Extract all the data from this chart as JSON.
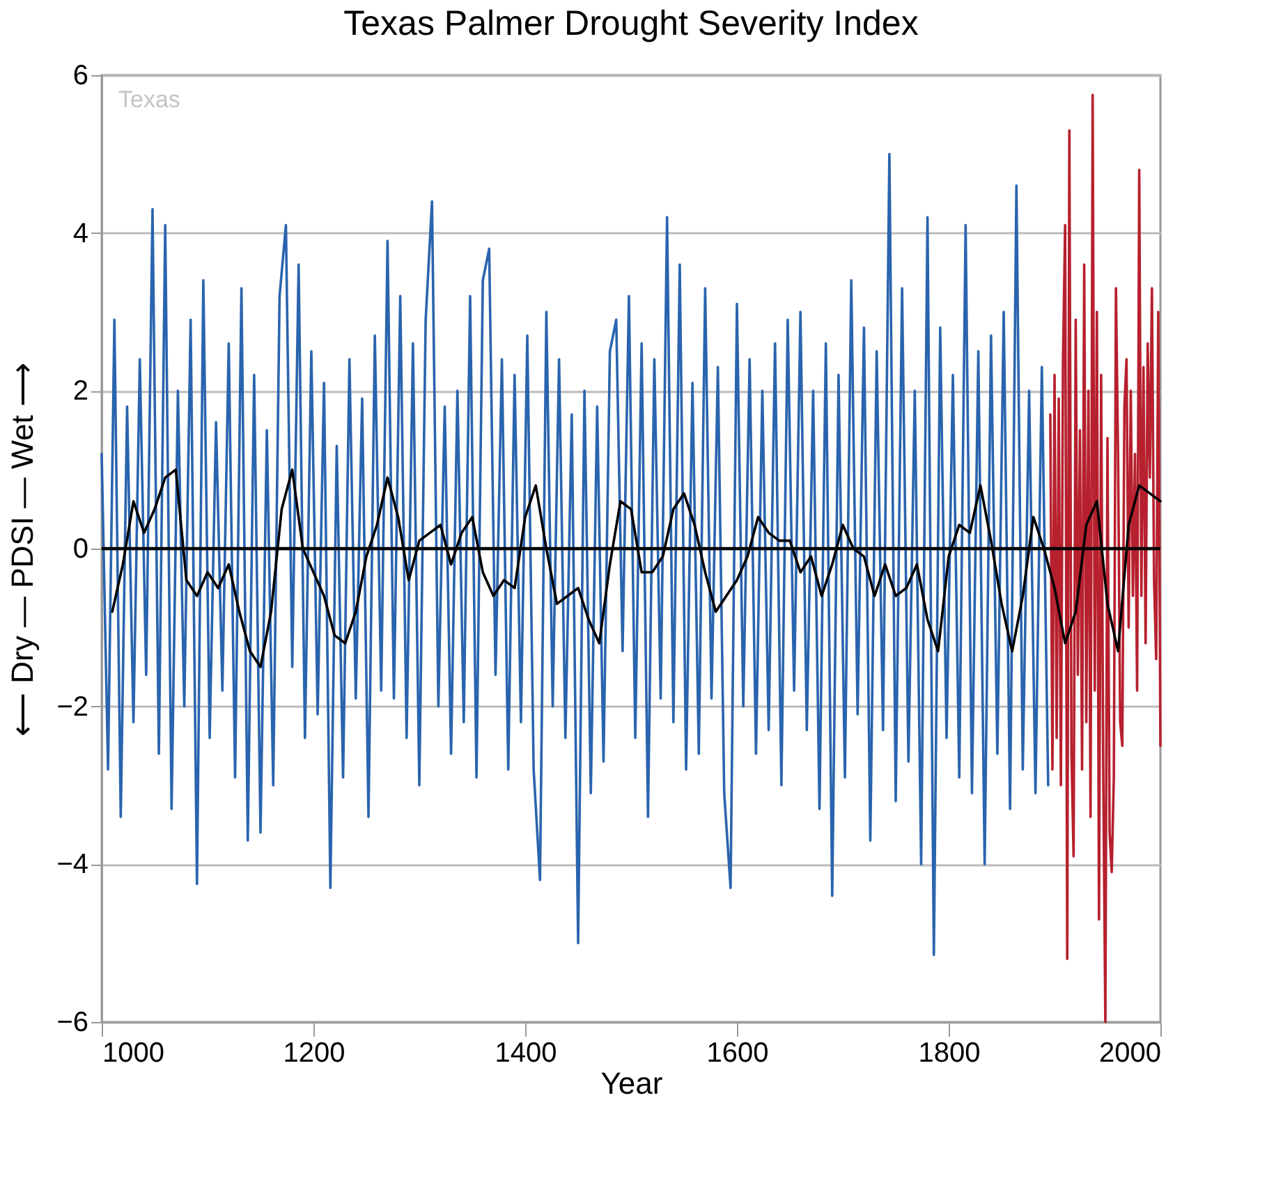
{
  "chart_data": {
    "type": "line",
    "title": "Texas Palmer Drought Severity Index",
    "xlabel": "Year",
    "ylabel": "⟵ Dry —   PDSI   — Wet ⟶",
    "annotations": [
      "Texas"
    ],
    "xlim": [
      1000,
      2000
    ],
    "xticks": [
      1000,
      1200,
      1400,
      1600,
      1800,
      2000
    ],
    "ylim": [
      -6,
      6
    ],
    "yticks": [
      -6,
      -4,
      -2,
      0,
      2,
      4,
      6
    ],
    "grid": "y",
    "line_style": "solid",
    "marker": "none",
    "ref_lines": [
      {
        "axis": "y",
        "value": 0,
        "color": "#000000"
      }
    ],
    "series": [
      {
        "color": "#2a64ae",
        "x": [
          1000,
          1006,
          1012,
          1018,
          1024,
          1030,
          1036,
          1042,
          1048,
          1054,
          1060,
          1066,
          1072,
          1078,
          1084,
          1090,
          1096,
          1102,
          1108,
          1114,
          1120,
          1126,
          1132,
          1138,
          1144,
          1150,
          1156,
          1162,
          1168,
          1174,
          1180,
          1186,
          1192,
          1198,
          1204,
          1210,
          1216,
          1222,
          1228,
          1234,
          1240,
          1246,
          1252,
          1258,
          1264,
          1270,
          1276,
          1282,
          1288,
          1294,
          1300,
          1306,
          1312,
          1318,
          1324,
          1330,
          1336,
          1342,
          1348,
          1354,
          1360,
          1366,
          1372,
          1378,
          1384,
          1390,
          1396,
          1402,
          1408,
          1414,
          1420,
          1426,
          1432,
          1438,
          1444,
          1450,
          1456,
          1462,
          1468,
          1474,
          1480,
          1486,
          1492,
          1498,
          1504,
          1510,
          1516,
          1522,
          1528,
          1534,
          1540,
          1546,
          1552,
          1558,
          1564,
          1570,
          1576,
          1582,
          1588,
          1594,
          1600,
          1606,
          1612,
          1618,
          1624,
          1630,
          1636,
          1642,
          1648,
          1654,
          1660,
          1666,
          1672,
          1678,
          1684,
          1690,
          1696,
          1702,
          1708,
          1714,
          1720,
          1726,
          1732,
          1738,
          1744,
          1750,
          1756,
          1762,
          1768,
          1774,
          1780,
          1786,
          1792,
          1798,
          1804,
          1810,
          1816,
          1822,
          1828,
          1834,
          1840,
          1846,
          1852,
          1858,
          1864,
          1870,
          1876,
          1882,
          1888,
          1894
        ],
        "values": [
          1.2,
          -2.8,
          2.9,
          -3.4,
          1.8,
          -2.2,
          2.4,
          -1.6,
          4.3,
          -2.6,
          4.1,
          -3.3,
          2.0,
          -2.0,
          2.9,
          -4.25,
          3.4,
          -2.4,
          1.6,
          -1.8,
          2.6,
          -2.9,
          3.3,
          -3.7,
          2.2,
          -3.6,
          1.5,
          -3.0,
          3.2,
          4.1,
          -1.5,
          3.6,
          -2.4,
          2.5,
          -2.1,
          2.1,
          -4.3,
          1.3,
          -2.9,
          2.4,
          -1.9,
          1.9,
          -3.4,
          2.7,
          -1.8,
          3.9,
          -1.9,
          3.2,
          -2.4,
          2.6,
          -3.0,
          2.9,
          4.4,
          -2.0,
          1.8,
          -2.6,
          2.0,
          -2.2,
          3.2,
          -2.9,
          3.4,
          3.8,
          -1.6,
          2.4,
          -2.8,
          2.2,
          -2.2,
          2.7,
          -2.8,
          -4.2,
          3.0,
          -2.0,
          2.4,
          -2.4,
          1.7,
          -5.0,
          2.0,
          -3.1,
          1.8,
          -2.7,
          2.5,
          2.9,
          -1.3,
          3.2,
          -2.4,
          2.6,
          -3.4,
          2.4,
          -1.9,
          4.2,
          -2.2,
          3.6,
          -2.8,
          2.1,
          -2.6,
          3.3,
          -1.9,
          2.3,
          -3.1,
          -4.3,
          3.1,
          -2.0,
          2.4,
          -2.6,
          2.0,
          -2.3,
          2.6,
          -3.0,
          2.9,
          -1.8,
          3.0,
          -2.3,
          2.0,
          -3.3,
          2.6,
          -4.4,
          2.2,
          -2.9,
          3.4,
          -2.1,
          2.8,
          -3.7,
          2.5,
          -2.3,
          5.0,
          -3.2,
          3.3,
          -2.7,
          2.0,
          -4.0,
          4.2,
          -5.15,
          2.8,
          -2.4,
          2.2,
          -2.9,
          4.1,
          -3.1,
          2.5,
          -4.0,
          2.7,
          -2.6,
          3.0,
          -3.3,
          4.6,
          -2.8,
          2.0,
          -3.1,
          2.3,
          -3.0
        ]
      },
      {
        "color": "#b7202e",
        "x": [
          1896,
          1898,
          1900,
          1902,
          1904,
          1906,
          1908,
          1910,
          1912,
          1914,
          1916,
          1918,
          1920,
          1922,
          1924,
          1926,
          1928,
          1930,
          1932,
          1934,
          1936,
          1938,
          1940,
          1942,
          1944,
          1946,
          1948,
          1950,
          1952,
          1954,
          1956,
          1958,
          1960,
          1962,
          1964,
          1966,
          1968,
          1970,
          1972,
          1974,
          1976,
          1978,
          1980,
          1982,
          1984,
          1986,
          1988,
          1990,
          1992,
          1994,
          1996,
          1998,
          2000
        ],
        "values": [
          1.7,
          -2.8,
          2.2,
          -2.4,
          1.9,
          -3.0,
          2.4,
          4.1,
          -5.2,
          5.3,
          -2.6,
          -3.9,
          2.9,
          -1.6,
          1.5,
          -2.8,
          3.6,
          -2.2,
          2.0,
          -3.4,
          5.75,
          -1.8,
          3.0,
          -4.7,
          2.2,
          -2.8,
          -6.0,
          1.4,
          -3.6,
          -4.1,
          -2.9,
          3.3,
          1.2,
          -2.2,
          -2.5,
          1.8,
          2.4,
          -1.0,
          2.0,
          -0.6,
          1.2,
          -1.8,
          4.8,
          -0.6,
          2.3,
          -1.2,
          2.6,
          0.9,
          3.3,
          -0.4,
          -1.4,
          3.0,
          -2.5
        ]
      },
      {
        "color": "#000000",
        "x": [
          1010,
          1020,
          1030,
          1040,
          1050,
          1060,
          1070,
          1080,
          1090,
          1100,
          1110,
          1120,
          1130,
          1140,
          1150,
          1160,
          1170,
          1180,
          1190,
          1200,
          1210,
          1220,
          1230,
          1240,
          1250,
          1260,
          1270,
          1280,
          1290,
          1300,
          1310,
          1320,
          1330,
          1340,
          1350,
          1360,
          1370,
          1380,
          1390,
          1400,
          1410,
          1420,
          1430,
          1440,
          1450,
          1460,
          1470,
          1480,
          1490,
          1500,
          1510,
          1520,
          1530,
          1540,
          1550,
          1560,
          1570,
          1580,
          1590,
          1600,
          1610,
          1620,
          1630,
          1640,
          1650,
          1660,
          1670,
          1680,
          1690,
          1700,
          1710,
          1720,
          1730,
          1740,
          1750,
          1760,
          1770,
          1780,
          1790,
          1800,
          1810,
          1820,
          1830,
          1840,
          1850,
          1860,
          1870,
          1880,
          1890,
          1900,
          1910,
          1920,
          1930,
          1940,
          1950,
          1960,
          1970,
          1980,
          1990,
          2000
        ],
        "values": [
          -0.8,
          -0.2,
          0.6,
          0.2,
          0.5,
          0.9,
          1.0,
          -0.4,
          -0.6,
          -0.3,
          -0.5,
          -0.2,
          -0.8,
          -1.3,
          -1.5,
          -0.8,
          0.5,
          1.0,
          0.0,
          -0.3,
          -0.6,
          -1.1,
          -1.2,
          -0.8,
          -0.1,
          0.3,
          0.9,
          0.4,
          -0.4,
          0.1,
          0.2,
          0.3,
          -0.2,
          0.2,
          0.4,
          -0.3,
          -0.6,
          -0.4,
          -0.5,
          0.4,
          0.8,
          0.0,
          -0.7,
          -0.6,
          -0.5,
          -0.9,
          -1.2,
          -0.2,
          0.6,
          0.5,
          -0.3,
          -0.3,
          -0.1,
          0.5,
          0.7,
          0.3,
          -0.3,
          -0.8,
          -0.6,
          -0.4,
          -0.1,
          0.4,
          0.2,
          0.1,
          0.1,
          -0.3,
          -0.1,
          -0.6,
          -0.2,
          0.3,
          0.0,
          -0.1,
          -0.6,
          -0.2,
          -0.6,
          -0.5,
          -0.2,
          -0.9,
          -1.3,
          -0.1,
          0.3,
          0.2,
          0.8,
          0.1,
          -0.7,
          -1.3,
          -0.6,
          0.4,
          0.0,
          -0.5,
          -1.2,
          -0.8,
          0.3,
          0.6,
          -0.7,
          -1.3,
          0.3,
          0.8,
          0.7,
          0.6
        ]
      }
    ]
  }
}
